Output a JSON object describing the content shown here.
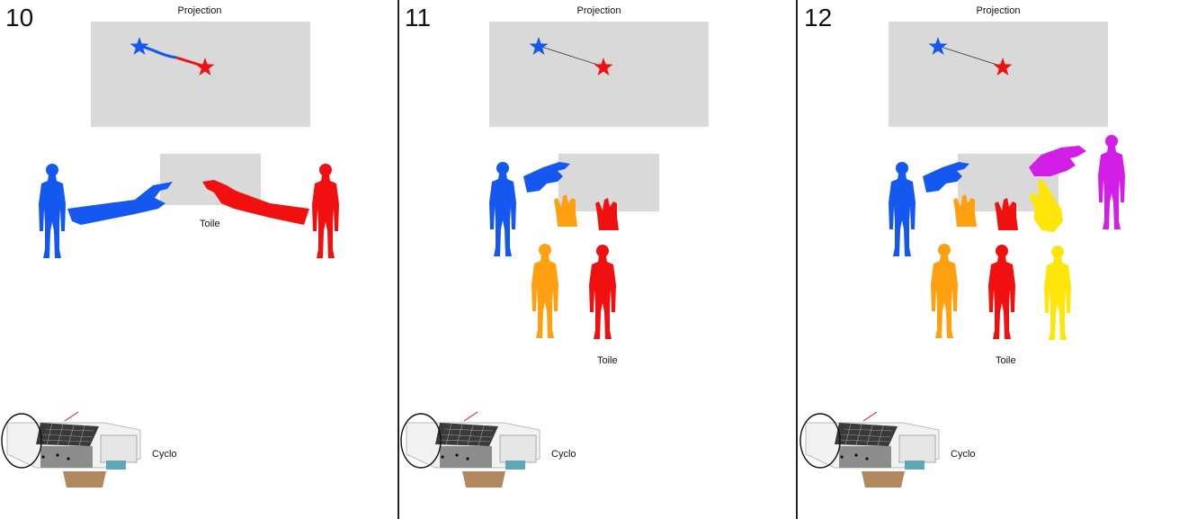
{
  "panels": [
    {
      "number": "10",
      "projection_label": "Projection",
      "screen_label": "Toile",
      "room_label": "Cyclo"
    },
    {
      "number": "11",
      "projection_label": "Projection",
      "screen_label": "Toile",
      "room_label": "Cyclo"
    },
    {
      "number": "12",
      "projection_label": "Projection",
      "screen_label": "Toile",
      "room_label": "Cyclo"
    }
  ],
  "colors": {
    "blue": "#1458f0",
    "red": "#f01010",
    "orange": "#ffa010",
    "yellow": "#ffe60a",
    "magenta": "#d21ee6",
    "screen_gray": "#d9d9d9"
  }
}
